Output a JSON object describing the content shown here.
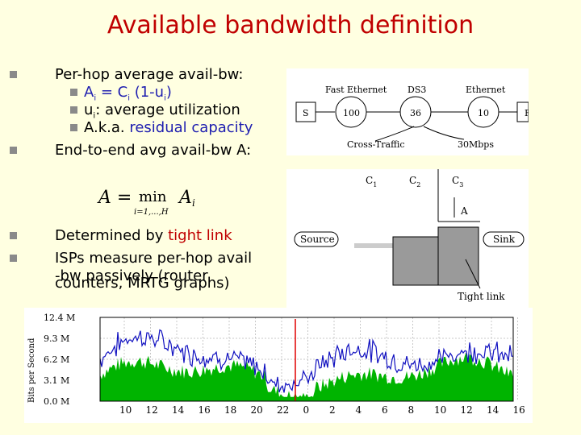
{
  "slide": {
    "title": "Available bandwidth definition",
    "bullets": {
      "b1": "Per-hop average avail-bw:",
      "b1_sub1_A": "A",
      "b1_sub1_i": "i",
      "b1_sub1_eq": " = C",
      "b1_sub1_i2": "i",
      "b1_sub1_rest1": " (1-u",
      "b1_sub1_i3": "i",
      "b1_sub1_rest2": ")",
      "b1_sub2_u": "u",
      "b1_sub2_i": "i",
      "b1_sub2_rest": ": average utilization",
      "b1_sub3_prefix": "A.k.a. ",
      "b1_sub3_highlight": "residual capacity",
      "b2": "End-to-end avg avail-bw A:",
      "formula_lhs": "A =",
      "formula_min": "min",
      "formula_sub": "i=1,...,H",
      "formula_rhs": "A",
      "formula_rhs_sub": "i",
      "b3_prefix": "Determined by ",
      "b3_highlight": "tight link",
      "b4_line1": "ISPs measure per-hop avail",
      "b4_line2": "-bw passively (router",
      "b4_line3": "counters, MRTG graphs)"
    }
  },
  "path_diagram": {
    "labels": {
      "fast_ethernet": "Fast Ethernet",
      "ds3": "DS3",
      "ethernet": "Ethernet",
      "sender": "S",
      "receiver": "R",
      "cross_traffic": "Cross-Traffic",
      "rate": "30Mbps"
    },
    "hops": [
      "100",
      "36",
      "10"
    ]
  },
  "capacity_diagram": {
    "labels": {
      "c1": "C",
      "c1_sub": "1",
      "c2": "C",
      "c2_sub": "2",
      "c3": "C",
      "c3_sub": "3",
      "a": "A",
      "source": "Source",
      "sink": "Sink",
      "tight_link": "Tight link"
    }
  },
  "mrtg": {
    "ylabel": "Bits per Second",
    "ytick_labels": [
      "12.4 M",
      "9.3 M",
      "6.2 M",
      "3.1 M",
      "0.0 M"
    ],
    "xtick_labels": [
      "10",
      "12",
      "14",
      "16",
      "18",
      "20",
      "22",
      "0",
      "2",
      "4",
      "6",
      "8",
      "10",
      "12",
      "14",
      "16"
    ],
    "colors": {
      "in": "#00b400",
      "out": "#1010c0",
      "marker": "#e00000",
      "grid": "#c8c8c8"
    }
  }
}
